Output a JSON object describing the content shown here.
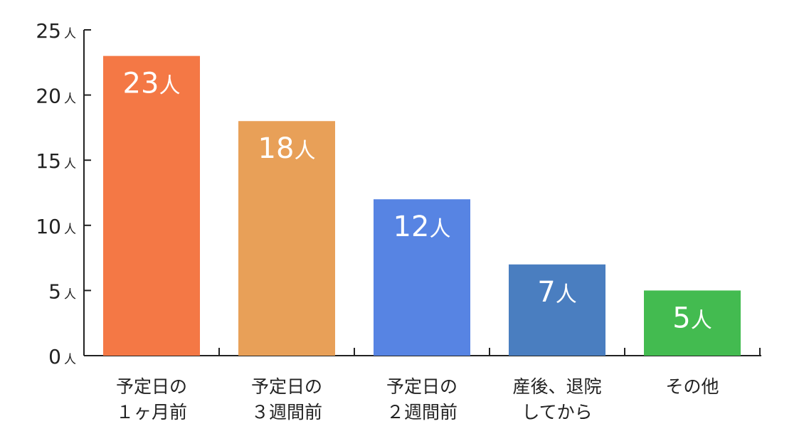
{
  "chart_data": {
    "type": "bar",
    "categories": [
      [
        "予定日の",
        "１ヶ月前"
      ],
      [
        "予定日の",
        "３週間前"
      ],
      [
        "予定日の",
        "２週間前"
      ],
      [
        "産後、退院",
        "してから"
      ],
      [
        "その他"
      ]
    ],
    "values": [
      23,
      18,
      12,
      7,
      5
    ],
    "unit": "人",
    "data_labels": [
      "23",
      "18",
      "12",
      "7",
      "5"
    ],
    "y_ticks": [
      0,
      5,
      10,
      15,
      20,
      25
    ],
    "ylim": [
      0,
      25
    ],
    "grid": false,
    "colors": [
      "#f47845",
      "#e8a058",
      "#5784e3",
      "#4a7ec0",
      "#43bb50"
    ]
  }
}
